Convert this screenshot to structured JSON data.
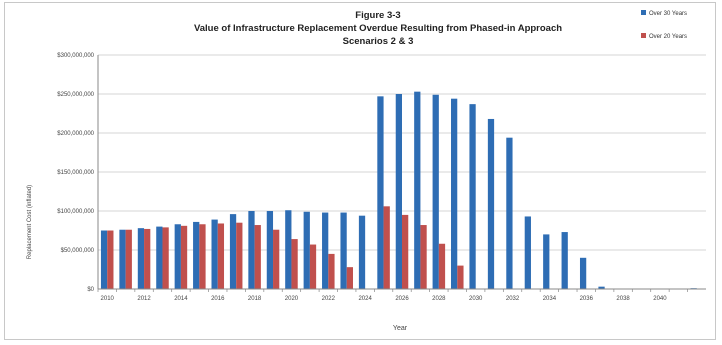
{
  "chart_data": {
    "type": "bar",
    "title": "Figure 3-3",
    "subtitle": "Value of Infrastructure Replacement Overdue Resulting from Phased-in Approach",
    "subtitle2": "Scenarios 2 & 3",
    "xlabel": "Year",
    "ylabel": "Replacement Cost (inflated)",
    "ylim": [
      0,
      300000000
    ],
    "yticks": [
      {
        "value": 0,
        "label": "$0"
      },
      {
        "value": 50000000,
        "label": "$50,000,000"
      },
      {
        "value": 100000000,
        "label": "$100,000,000"
      },
      {
        "value": 150000000,
        "label": "$150,000,000"
      },
      {
        "value": 200000000,
        "label": "$200,000,000"
      },
      {
        "value": 250000000,
        "label": "$250,000,000"
      },
      {
        "value": 300000000,
        "label": "$300,000,000"
      }
    ],
    "categories": [
      2010,
      2011,
      2012,
      2013,
      2014,
      2015,
      2016,
      2017,
      2018,
      2019,
      2020,
      2021,
      2022,
      2023,
      2024,
      2025,
      2026,
      2027,
      2028,
      2029,
      2030,
      2031,
      2032,
      2033,
      2034,
      2035,
      2036,
      2037,
      2038,
      2039,
      2040,
      2041,
      2042
    ],
    "xtick_labels": [
      "2010",
      "",
      "2012",
      "",
      "2014",
      "",
      "2016",
      "",
      "2018",
      "",
      "2020",
      "",
      "2022",
      "",
      "2024",
      "",
      "2026",
      "",
      "2028",
      "",
      "2030",
      "",
      "2032",
      "",
      "2034",
      "",
      "2036",
      "",
      "2038",
      "",
      "2040",
      "",
      ""
    ],
    "legend_position": "top-right",
    "grid": true,
    "series": [
      {
        "name": "Over 30 Years",
        "color": "#2e6db4",
        "values": [
          75000000,
          76000000,
          78000000,
          80000000,
          83000000,
          86000000,
          89000000,
          96000000,
          100000000,
          100000000,
          101000000,
          99000000,
          98000000,
          98000000,
          94000000,
          247000000,
          250000000,
          253000000,
          249000000,
          244000000,
          237000000,
          218000000,
          194000000,
          93000000,
          70000000,
          73000000,
          40000000,
          3000000,
          0,
          0,
          0,
          0,
          1000000
        ]
      },
      {
        "name": "Over 20 Years",
        "color": "#c0504d",
        "values": [
          75000000,
          76000000,
          77000000,
          79000000,
          81000000,
          83000000,
          84000000,
          85000000,
          82000000,
          76000000,
          64000000,
          57000000,
          45000000,
          28000000,
          0,
          106000000,
          95000000,
          82000000,
          58000000,
          30000000,
          0,
          0,
          0,
          0,
          0,
          0,
          0,
          0,
          0,
          0,
          0,
          0,
          0
        ]
      }
    ]
  }
}
